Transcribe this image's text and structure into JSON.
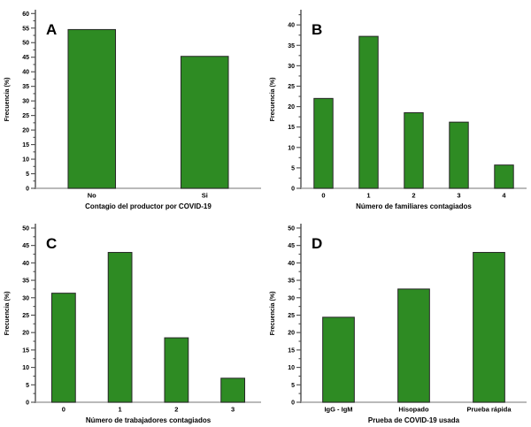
{
  "figure": {
    "description": "Four-panel bar chart figure on COVID-19 contagion survey results",
    "background": "#ffffff"
  },
  "style": {
    "bar_fill": "#2e8b23",
    "bar_stroke": "#262626",
    "axis_color": "#4d4d4d",
    "baseline_color": "#a3a3a3",
    "text_color": "#000000",
    "panel_letter_size": 17,
    "tick_font_size": 7,
    "category_font_size": 7.5,
    "axis_title_font_size": 8
  },
  "chart_data": [
    {
      "type": "bar",
      "panel_label": "A",
      "categories": [
        "No",
        "Si"
      ],
      "values": [
        54.5,
        45.3
      ],
      "title": "",
      "xlabel": "Contagio del productor por COVID-19",
      "ylabel": "Frecuencia (%)",
      "ylim": [
        0,
        61
      ],
      "ytick_step": 5,
      "ytick_minor_step": 2.5,
      "grid": false,
      "legend": false
    },
    {
      "type": "bar",
      "panel_label": "B",
      "categories": [
        "0",
        "1",
        "2",
        "3",
        "4"
      ],
      "values": [
        22.0,
        37.2,
        18.5,
        16.2,
        5.7
      ],
      "title": "",
      "xlabel": "Número de familiares contagiados",
      "ylabel": "Frecuencia (%)",
      "ylim": [
        0,
        43.5
      ],
      "ytick_step": 5,
      "ytick_minor_step": 2.5,
      "grid": false,
      "legend": false
    },
    {
      "type": "bar",
      "panel_label": "C",
      "categories": [
        "0",
        "1",
        "2",
        "3"
      ],
      "values": [
        31.3,
        43.0,
        18.5,
        6.9
      ],
      "title": "",
      "xlabel": "Número de trabajadores contagiados",
      "ylabel": "Frecuencia (%)",
      "ylim": [
        0,
        51
      ],
      "ytick_step": 5,
      "ytick_minor_step": 2.5,
      "grid": false,
      "legend": false
    },
    {
      "type": "bar",
      "panel_label": "D",
      "categories": [
        "IgG - IgM",
        "Hisopado",
        "Prueba rápida"
      ],
      "values": [
        24.4,
        32.5,
        43.0
      ],
      "title": "",
      "xlabel": "Prueba de COVID-19 usada",
      "ylabel": "Frecuencia (%)",
      "ylim": [
        0,
        51
      ],
      "ytick_step": 5,
      "ytick_minor_step": 2.5,
      "grid": false,
      "legend": false
    }
  ]
}
